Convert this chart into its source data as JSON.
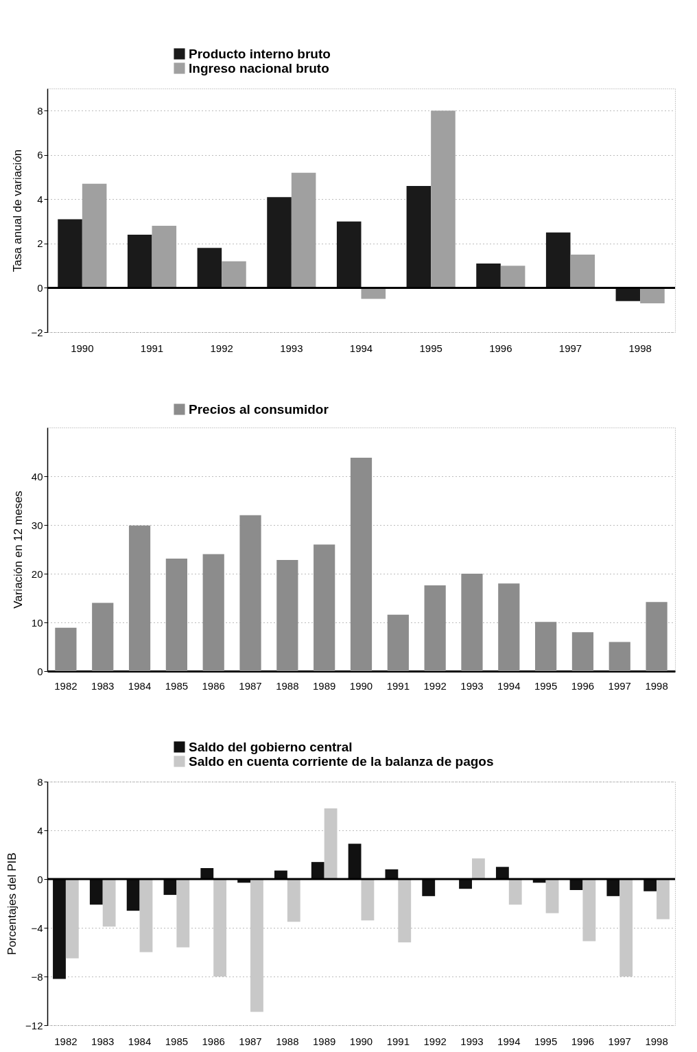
{
  "chart_data": [
    {
      "type": "bar",
      "categories": [
        "1990",
        "1991",
        "1992",
        "1993",
        "1994",
        "1995",
        "1996",
        "1997",
        "1998"
      ],
      "series": [
        {
          "name": "Producto interno bruto",
          "color": "#1a1a1a",
          "values": [
            3.1,
            2.4,
            1.8,
            4.1,
            3.0,
            4.6,
            1.1,
            2.5,
            -0.6
          ]
        },
        {
          "name": "Ingreso nacional bruto",
          "color": "#a0a0a0",
          "values": [
            4.7,
            2.8,
            1.2,
            5.2,
            -0.5,
            8.0,
            1.0,
            1.5,
            -0.7
          ]
        }
      ],
      "ylabel": "Tasa anual de variación",
      "ylim": [
        -2,
        9
      ],
      "yticks": [
        -2,
        0,
        2,
        4,
        6,
        8
      ],
      "grid": "y",
      "legend": "top",
      "ref_lines": [
        {
          "axis": "y",
          "value": 0,
          "color": "#000000"
        }
      ]
    },
    {
      "type": "bar",
      "categories": [
        "1982",
        "1983",
        "1984",
        "1985",
        "1986",
        "1987",
        "1988",
        "1989",
        "1990",
        "1991",
        "1992",
        "1993",
        "1994",
        "1995",
        "1996",
        "1997",
        "1998"
      ],
      "series": [
        {
          "name": "Precios al consumidor",
          "color": "#8c8c8c",
          "values": [
            8.9,
            14.0,
            29.9,
            23.1,
            24.0,
            32.0,
            22.8,
            26.0,
            43.8,
            11.6,
            17.6,
            20.0,
            18.0,
            10.1,
            8.0,
            6.0,
            14.2
          ]
        }
      ],
      "ylabel": "Variación en 12 meses",
      "ylim": [
        0,
        50
      ],
      "yticks": [
        0,
        10,
        20,
        30,
        40
      ],
      "grid": "y",
      "legend": "top"
    },
    {
      "type": "bar",
      "categories": [
        "1982",
        "1983",
        "1984",
        "1985",
        "1986",
        "1987",
        "1988",
        "1989",
        "1990",
        "1991",
        "1992",
        "1993",
        "1994",
        "1995",
        "1996",
        "1997",
        "1998"
      ],
      "series": [
        {
          "name": "Saldo del gobierno central",
          "color": "#111111",
          "values": [
            -8.2,
            -2.1,
            -2.6,
            -1.3,
            0.9,
            -0.3,
            0.7,
            1.4,
            2.9,
            0.8,
            -1.4,
            -0.8,
            1.0,
            -0.3,
            -0.9,
            -1.4,
            -1.0
          ]
        },
        {
          "name": "Saldo en cuenta corriente de la balanza de pagos",
          "color": "#c8c8c8",
          "values": [
            -6.5,
            -3.9,
            -6.0,
            -5.6,
            -8.0,
            -10.9,
            -3.5,
            5.8,
            -3.4,
            -5.2,
            null,
            1.7,
            -2.1,
            -2.8,
            -5.1,
            -8.0,
            -3.3
          ]
        }
      ],
      "ylabel": "Porcentajes del PIB",
      "ylim": [
        -12,
        8
      ],
      "yticks": [
        -12,
        -8,
        -4,
        0,
        4,
        8
      ],
      "grid": "y",
      "legend": "top",
      "ref_lines": [
        {
          "axis": "y",
          "value": 0,
          "color": "#000000"
        }
      ]
    }
  ]
}
